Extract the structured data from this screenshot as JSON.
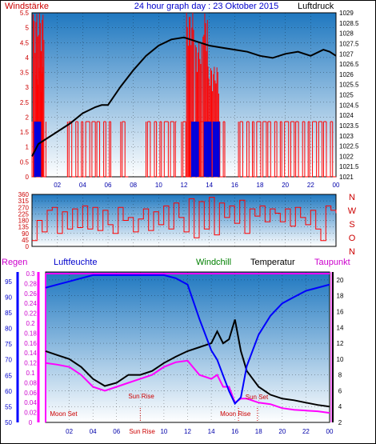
{
  "header": {
    "left_label": "Windstärke",
    "title": "24 hour graph day : 23 Oktober 2015",
    "right_label": "Luftdruck"
  },
  "panel_bottom": {
    "regen_label": "Regen",
    "luftfeuchte_label": "Luftfeuchte",
    "windchill_label": "Windchill",
    "temperatur_label": "Temperatur",
    "taupunkt_label": "Taupunkt",
    "moon_set_label": "Moon Set",
    "sun_rise_label": "Sun Rise",
    "sun_rise_axis_label": "Sun Rise",
    "moon_rise_label": "Moon Rise",
    "sun_set_label": "Sun Set"
  },
  "colors": {
    "sky_top": "#1f78c0",
    "sky_bottom": "#ffffff",
    "wind_red": "#ff0000",
    "wind_blue": "#0000dd",
    "pressure": "#000000",
    "humidity": "#0000ff",
    "temperature": "#000000",
    "dewpoint": "#ff00ff",
    "rain": "#ff00ff",
    "label_red": "#cc0000",
    "label_blue": "#0000cc",
    "label_green": "#008000",
    "label_magenta": "#cc00cc"
  },
  "chart_data": [
    {
      "type": "line",
      "name_wind": "Windstärke",
      "name_pressure": "Luftdruck",
      "x_ticks": [
        "02",
        "04",
        "06",
        "08",
        "10",
        "12",
        "14",
        "16",
        "18",
        "20",
        "22",
        "00"
      ],
      "wind_ylim": [
        0,
        5.5
      ],
      "wind_ticks": [
        "0",
        "0.5",
        "1",
        "1.5",
        "2",
        "2.5",
        "3",
        "3.5",
        "4",
        "4.5",
        "5",
        "5.5"
      ],
      "pressure_ylim": [
        1021,
        1029
      ],
      "pressure_ticks": [
        "1021",
        "1021.5",
        "1022",
        "1022.5",
        "1023",
        "1023.5",
        "1024",
        "1024.5",
        "1025",
        "1025.5",
        "1026",
        "1026.5",
        "1027",
        "1027.5",
        "1028",
        "1028.5",
        "1029"
      ],
      "pressure": {
        "x": [
          0.0,
          0.5,
          1.0,
          2.0,
          3.0,
          4.0,
          5.0,
          5.5,
          6.0,
          7.0,
          8.0,
          9.0,
          10.0,
          11.0,
          12.0,
          12.5,
          13.0,
          14.0,
          15.0,
          16.0,
          17.0,
          18.0,
          19.0,
          20.0,
          21.0,
          22.0,
          23.0,
          23.5,
          24.0
        ],
        "y": [
          1022.0,
          1022.6,
          1022.8,
          1023.2,
          1023.6,
          1024.1,
          1024.4,
          1024.5,
          1024.5,
          1025.4,
          1026.2,
          1026.9,
          1027.4,
          1027.7,
          1027.8,
          1027.7,
          1027.6,
          1027.4,
          1027.3,
          1027.2,
          1027.1,
          1026.9,
          1026.8,
          1027.0,
          1027.1,
          1026.9,
          1027.2,
          1027.1,
          1026.9
        ]
      },
      "wind_bursts": [
        {
          "x0": 0.1,
          "x1": 1.0,
          "level": 5.5
        },
        {
          "x0": 0.3,
          "x1": 0.9,
          "level": 3.7
        },
        {
          "x0": 12.2,
          "x1": 12.8,
          "level": 5.5
        },
        {
          "x0": 12.9,
          "x1": 13.4,
          "level": 4.5
        },
        {
          "x0": 13.5,
          "x1": 13.9,
          "level": 5.5
        },
        {
          "x0": 13.9,
          "x1": 14.8,
          "level": 3.7
        }
      ],
      "wind_band_level": 1.85,
      "wind_band_ranges": [
        [
          0.0,
          1.1
        ],
        [
          2.8,
          6.3
        ],
        [
          7.0,
          7.6
        ],
        [
          9.0,
          11.4
        ],
        [
          11.8,
          15.3
        ],
        [
          16.3,
          24.0
        ]
      ],
      "wind_blue_ranges": [
        [
          0.2,
          0.7
        ],
        [
          12.6,
          13.2
        ],
        [
          13.6,
          14.2
        ],
        [
          14.3,
          14.8
        ]
      ]
    },
    {
      "type": "line",
      "name": "Windrichtung",
      "ylim": [
        0,
        360
      ],
      "y_ticks": [
        "0",
        "45",
        "90",
        "135",
        "180",
        "225",
        "270",
        "315",
        "360"
      ],
      "compass_labels": [
        "N",
        "W",
        "S",
        "O",
        "N"
      ],
      "x": [
        0.0,
        0.4,
        0.8,
        1.2,
        1.6,
        2.0,
        2.4,
        2.8,
        3.2,
        3.6,
        4.0,
        4.4,
        4.8,
        5.2,
        5.6,
        6.0,
        6.4,
        6.8,
        7.2,
        7.6,
        8.0,
        8.4,
        8.8,
        9.2,
        9.6,
        10.0,
        10.4,
        10.8,
        11.2,
        11.6,
        12.0,
        12.4,
        12.8,
        13.2,
        13.6,
        14.0,
        14.4,
        14.8,
        15.2,
        15.6,
        16.0,
        16.4,
        16.8,
        17.2,
        17.6,
        18.0,
        18.4,
        18.8,
        19.2,
        19.6,
        20.0,
        20.4,
        20.8,
        21.2,
        21.6,
        22.0,
        22.4,
        22.8,
        23.2,
        23.6,
        24.0
      ],
      "y": [
        40,
        180,
        100,
        250,
        270,
        90,
        240,
        120,
        260,
        130,
        280,
        120,
        270,
        110,
        250,
        150,
        90,
        270,
        180,
        200,
        100,
        190,
        260,
        110,
        240,
        150,
        280,
        120,
        300,
        200,
        100,
        330,
        60,
        310,
        120,
        340,
        80,
        300,
        200,
        280,
        160,
        320,
        90,
        260,
        210,
        280,
        170,
        260,
        230,
        170,
        260,
        140,
        270,
        200,
        150,
        250,
        120,
        40,
        280,
        250,
        230
      ]
    },
    {
      "type": "line",
      "name": "Temperatur / Luftfeuchte / Taupunkt",
      "humidity_ylim": [
        50,
        98
      ],
      "humidity_ticks": [
        "50",
        "55",
        "60",
        "65",
        "70",
        "75",
        "80",
        "85",
        "90",
        "95"
      ],
      "rain_ticks": [
        "0",
        "0.02",
        "0.04",
        "0.06",
        "0.08",
        "0.1",
        "0.12",
        "0.14",
        "0.16",
        "0.18",
        "0.2",
        "0.22",
        "0.24",
        "0.26",
        "0.28",
        "0.3"
      ],
      "temp_ylim": [
        2,
        21
      ],
      "temp_ticks": [
        "2",
        "4",
        "6",
        "8",
        "10",
        "12",
        "14",
        "16",
        "18",
        "20"
      ],
      "x": [
        0.0,
        1.0,
        2.0,
        3.0,
        4.0,
        5.0,
        6.0,
        7.0,
        8.0,
        9.0,
        10.0,
        11.0,
        12.0,
        13.0,
        14.0,
        14.5,
        15.0,
        15.5,
        16.0,
        16.5,
        17.0,
        18.0,
        19.0,
        20.0,
        21.0,
        22.0,
        23.0,
        24.0
      ],
      "humidity": [
        93,
        94,
        95,
        96,
        97,
        97,
        97,
        97,
        97,
        97,
        97,
        96,
        94,
        83,
        73,
        70,
        65,
        60,
        56,
        58,
        68,
        78,
        84,
        88,
        90,
        92,
        93,
        94
      ],
      "temperature": [
        11.0,
        10.5,
        10.0,
        9.0,
        7.5,
        6.6,
        7.0,
        8.0,
        8.0,
        8.5,
        9.5,
        10.3,
        11.0,
        11.5,
        12.0,
        13.5,
        12.0,
        12.5,
        15.0,
        11.0,
        8.5,
        6.5,
        5.5,
        5.0,
        4.8,
        4.5,
        4.2,
        4.0
      ],
      "dewpoint": [
        9.5,
        9.3,
        9.0,
        8.0,
        6.5,
        6.0,
        6.5,
        7.0,
        7.5,
        8.0,
        9.0,
        9.6,
        9.8,
        8.0,
        7.5,
        8.0,
        6.5,
        6.5,
        4.5,
        5.0,
        5.0,
        4.5,
        4.3,
        3.8,
        3.6,
        3.5,
        3.4,
        3.2
      ],
      "rain": [
        0.3,
        0.3,
        0.3,
        0.3,
        0.3,
        0.3,
        0.3,
        0.3,
        0.3,
        0.3,
        0.3,
        0.3,
        0.3,
        0.3,
        0.3,
        0.3,
        0.3,
        0.3,
        0.3,
        0.3,
        0.3,
        0.3,
        0.3,
        0.3,
        0.3,
        0.3,
        0.3,
        0.3
      ],
      "events": {
        "moon_set": 0.5,
        "sun_rise": 8.0,
        "moon_rise": 16.3,
        "sun_set": 17.9
      }
    }
  ]
}
